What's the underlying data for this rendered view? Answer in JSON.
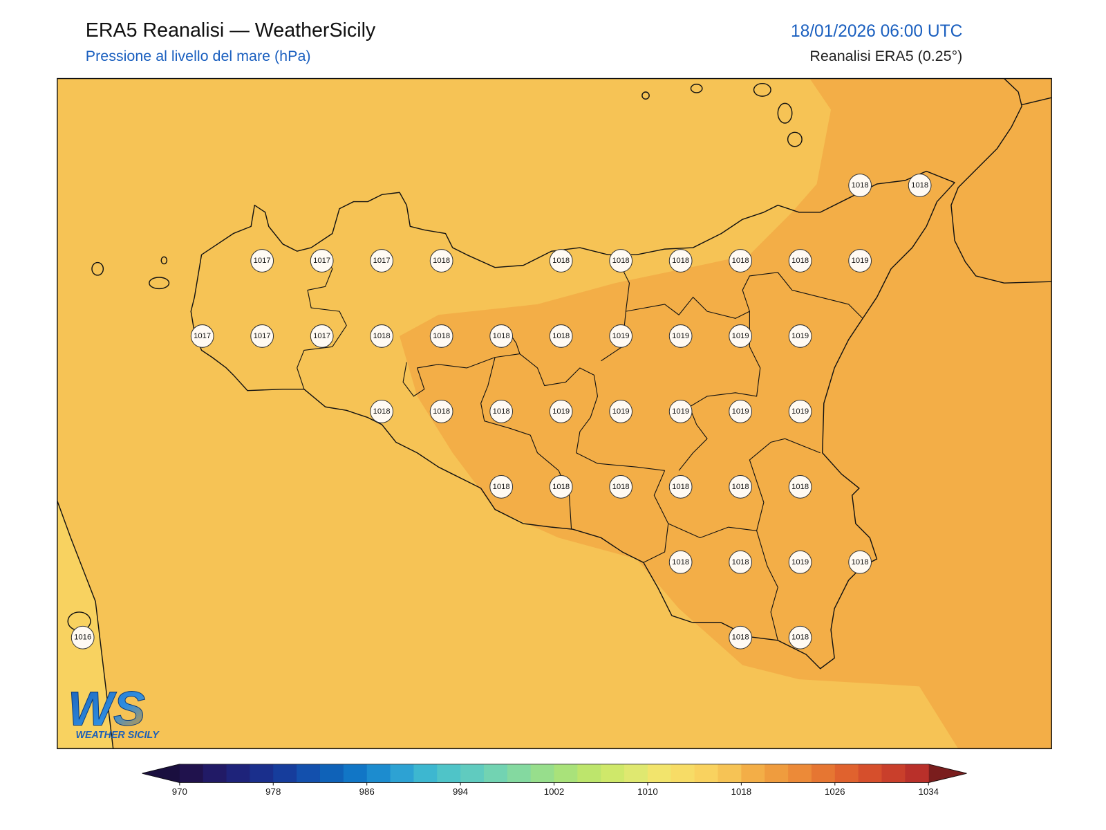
{
  "header": {
    "title": "ERA5 Reanalisi — WeatherSicily",
    "subtitle": "Pressione al livello del mare (hPa)",
    "datetime": "18/01/2026 06:00 UTC",
    "source": "Reanalisi ERA5 (0.25°)"
  },
  "logo": {
    "mark": "WS",
    "name": "WEATHER SICILY"
  },
  "pressure_labels": {
    "rows": [
      [
        null,
        null,
        null,
        null,
        null,
        null,
        null,
        null,
        null,
        null,
        null,
        null,
        null,
        1018,
        1018
      ],
      [
        null,
        null,
        null,
        1017,
        1017,
        1017,
        1018,
        null,
        1018,
        1018,
        1018,
        1018,
        1018,
        1019,
        null
      ],
      [
        null,
        null,
        1017,
        1017,
        1017,
        1018,
        1018,
        1018,
        1018,
        1019,
        1019,
        1019,
        1019,
        null,
        null
      ],
      [
        null,
        null,
        null,
        null,
        null,
        1018,
        1018,
        1018,
        1019,
        1019,
        1019,
        1019,
        1019,
        null,
        null
      ],
      [
        null,
        null,
        null,
        null,
        null,
        null,
        null,
        1018,
        1018,
        1018,
        1018,
        1018,
        1018,
        null,
        null
      ],
      [
        null,
        null,
        null,
        null,
        null,
        null,
        null,
        null,
        null,
        null,
        1018,
        1018,
        1019,
        1018,
        null
      ],
      [
        1016,
        null,
        null,
        null,
        null,
        null,
        null,
        null,
        null,
        null,
        null,
        1018,
        1018,
        null,
        null
      ]
    ]
  },
  "colorbar": {
    "levels": [
      970,
      972,
      974,
      976,
      978,
      980,
      982,
      984,
      986,
      988,
      990,
      992,
      994,
      996,
      998,
      1000,
      1002,
      1004,
      1006,
      1008,
      1010,
      1012,
      1014,
      1016,
      1018,
      1020,
      1022,
      1024,
      1026,
      1028,
      1030,
      1032,
      1034
    ],
    "colors": [
      "#20124d",
      "#211a66",
      "#1e237a",
      "#1a2f8c",
      "#163d9c",
      "#1350ad",
      "#0f62b8",
      "#1176c6",
      "#1c8ccf",
      "#2da2d3",
      "#3db7d0",
      "#4fc4c8",
      "#60cbbf",
      "#72d3b2",
      "#84d9a0",
      "#97de8c",
      "#a9e27a",
      "#bde56c",
      "#cfe86a",
      "#dfe870",
      "#f2e46c",
      "#f7dc66",
      "#f9d25f",
      "#f6c355",
      "#f3ae47",
      "#ef9c3e",
      "#ec8a38",
      "#e67632",
      "#e0622e",
      "#d64f2c",
      "#c93f2b",
      "#b9302a"
    ],
    "under_color": "#1a0f3f",
    "over_color": "#7a1d1d",
    "ticks": [
      970,
      978,
      986,
      994,
      1002,
      1010,
      1018,
      1026,
      1034
    ]
  }
}
